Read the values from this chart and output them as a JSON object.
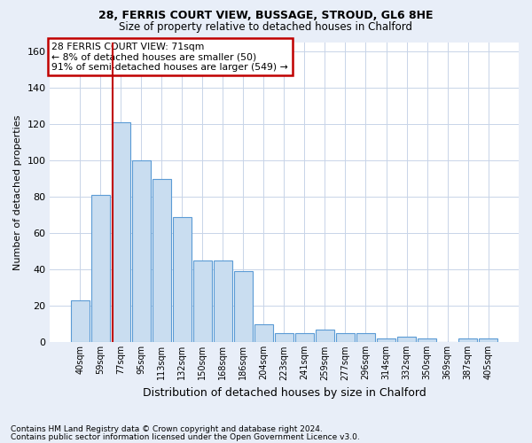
{
  "title_line1": "28, FERRIS COURT VIEW, BUSSAGE, STROUD, GL6 8HE",
  "title_line2": "Size of property relative to detached houses in Chalford",
  "xlabel": "Distribution of detached houses by size in Chalford",
  "ylabel": "Number of detached properties",
  "bin_labels": [
    "40sqm",
    "59sqm",
    "77sqm",
    "95sqm",
    "113sqm",
    "132sqm",
    "150sqm",
    "168sqm",
    "186sqm",
    "204sqm",
    "223sqm",
    "241sqm",
    "259sqm",
    "277sqm",
    "296sqm",
    "314sqm",
    "332sqm",
    "350sqm",
    "369sqm",
    "387sqm",
    "405sqm"
  ],
  "bar_heights": [
    23,
    81,
    121,
    100,
    90,
    69,
    45,
    45,
    39,
    10,
    5,
    5,
    7,
    5,
    5,
    2,
    3,
    2,
    0,
    2,
    2
  ],
  "bar_color": "#c9ddf0",
  "bar_edge_color": "#5b9bd5",
  "vline_color": "#c00000",
  "vline_x": 1.575,
  "annotation_line1": "28 FERRIS COURT VIEW: 71sqm",
  "annotation_line2": "← 8% of detached houses are smaller (50)",
  "annotation_line3": "91% of semi-detached houses are larger (549) →",
  "annotation_box_facecolor": "#ffffff",
  "annotation_box_edgecolor": "#c00000",
  "ylim": [
    0,
    165
  ],
  "yticks": [
    0,
    20,
    40,
    60,
    80,
    100,
    120,
    140,
    160
  ],
  "grid_color": "#c8d4e8",
  "axes_facecolor": "#ffffff",
  "fig_facecolor": "#e8eef8",
  "footnote1": "Contains HM Land Registry data © Crown copyright and database right 2024.",
  "footnote2": "Contains public sector information licensed under the Open Government Licence v3.0.",
  "title_fontsize": 9,
  "subtitle_fontsize": 8.5,
  "ylabel_fontsize": 8,
  "xlabel_fontsize": 9,
  "tick_fontsize": 8,
  "xtick_fontsize": 7
}
